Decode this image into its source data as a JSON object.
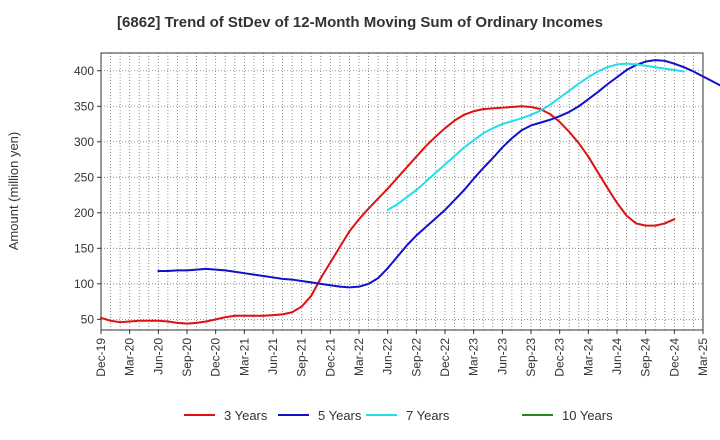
{
  "chart_data": {
    "type": "line",
    "title": "[6862]  Trend of StDev of 12-Month Moving Sum of Ordinary Incomes",
    "ylabel": "Amount (million yen)",
    "xlabel": "",
    "ylim": [
      35,
      425
    ],
    "yticks": [
      50,
      100,
      150,
      200,
      250,
      300,
      350,
      400
    ],
    "x_ticks": [
      "Dec-19",
      "Mar-20",
      "Jun-20",
      "Sep-20",
      "Dec-20",
      "Mar-21",
      "Jun-21",
      "Sep-21",
      "Dec-21",
      "Mar-22",
      "Jun-22",
      "Sep-22",
      "Dec-22",
      "Mar-23",
      "Jun-23",
      "Sep-23",
      "Dec-23",
      "Mar-24",
      "Jun-24",
      "Sep-24",
      "Dec-24",
      "Mar-25"
    ],
    "grid": true,
    "legend_position": "bottom",
    "series": [
      {
        "name": "3 Years",
        "color": "#dd1111",
        "start_index": 0,
        "values": [
          52,
          48,
          46,
          47,
          48,
          48,
          48,
          47,
          45,
          44,
          45,
          47,
          50,
          53,
          55,
          55,
          55,
          55,
          56,
          57,
          60,
          68,
          83,
          108,
          130,
          152,
          174,
          191,
          206,
          220,
          234,
          249,
          264,
          279,
          294,
          307,
          319,
          330,
          338,
          343,
          346,
          347,
          348,
          349,
          350,
          349,
          346,
          339,
          328,
          314,
          298,
          279,
          257,
          235,
          214,
          196,
          185,
          182,
          182,
          185,
          191
        ]
      },
      {
        "name": "5 Years",
        "color": "#1111cc",
        "start_index": 6,
        "values": [
          118,
          118,
          119,
          119,
          120,
          121,
          120,
          119,
          117,
          115,
          113,
          111,
          109,
          107,
          106,
          104,
          102,
          100,
          98,
          96,
          95,
          96,
          100,
          108,
          122,
          138,
          154,
          168,
          180,
          192,
          204,
          218,
          232,
          248,
          263,
          277,
          292,
          305,
          316,
          323,
          327,
          331,
          336,
          342,
          350,
          360,
          370,
          381,
          391,
          401,
          408,
          413,
          415,
          414,
          410,
          405,
          399,
          392,
          385,
          378
        ]
      },
      {
        "name": "7 Years",
        "color": "#22ddee",
        "start_index": 30,
        "values": [
          204,
          212,
          222,
          232,
          244,
          256,
          268,
          280,
          292,
          302,
          312,
          319,
          325,
          329,
          333,
          338,
          344,
          352,
          362,
          372,
          382,
          391,
          399,
          405,
          409,
          410,
          409,
          407,
          405,
          403,
          401,
          399
        ]
      },
      {
        "name": "10 Years",
        "color": "#228822",
        "start_index": 0,
        "values": []
      }
    ]
  }
}
